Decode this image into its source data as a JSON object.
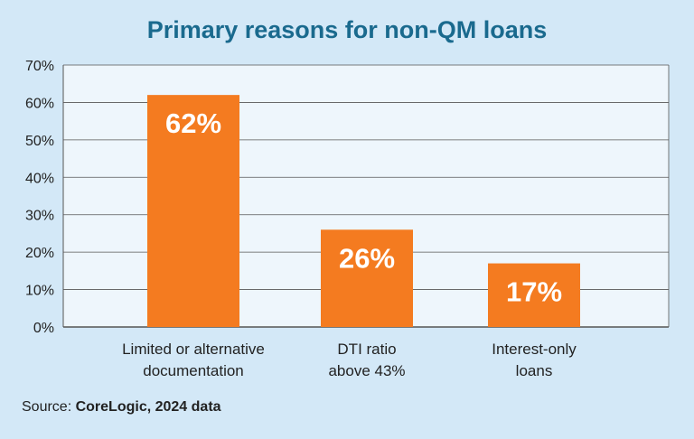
{
  "chart_data": {
    "type": "bar",
    "title": "Primary reasons for non-QM loans",
    "categories": [
      [
        "Limited or alternative",
        "documentation"
      ],
      [
        "DTI ratio",
        "above 43%"
      ],
      [
        "Interest-only",
        "loans"
      ]
    ],
    "values": [
      62,
      26,
      17
    ],
    "data_labels": [
      "62%",
      "26%",
      "17%"
    ],
    "ylim": [
      0,
      70
    ],
    "yticks": [
      0,
      10,
      20,
      30,
      40,
      50,
      60,
      70
    ],
    "ytick_labels": [
      "0%",
      "10%",
      "20%",
      "30%",
      "40%",
      "50%",
      "60%",
      "70%"
    ],
    "grid": true,
    "colors": {
      "bar": "#f47b20",
      "plot_bg": "#eef6fc",
      "page_bg": "#d3e8f7",
      "title": "#1a6a8e",
      "grid": "#555555"
    }
  },
  "source": {
    "prefix": "Source: ",
    "detail": "CoreLogic, 2024 data"
  }
}
